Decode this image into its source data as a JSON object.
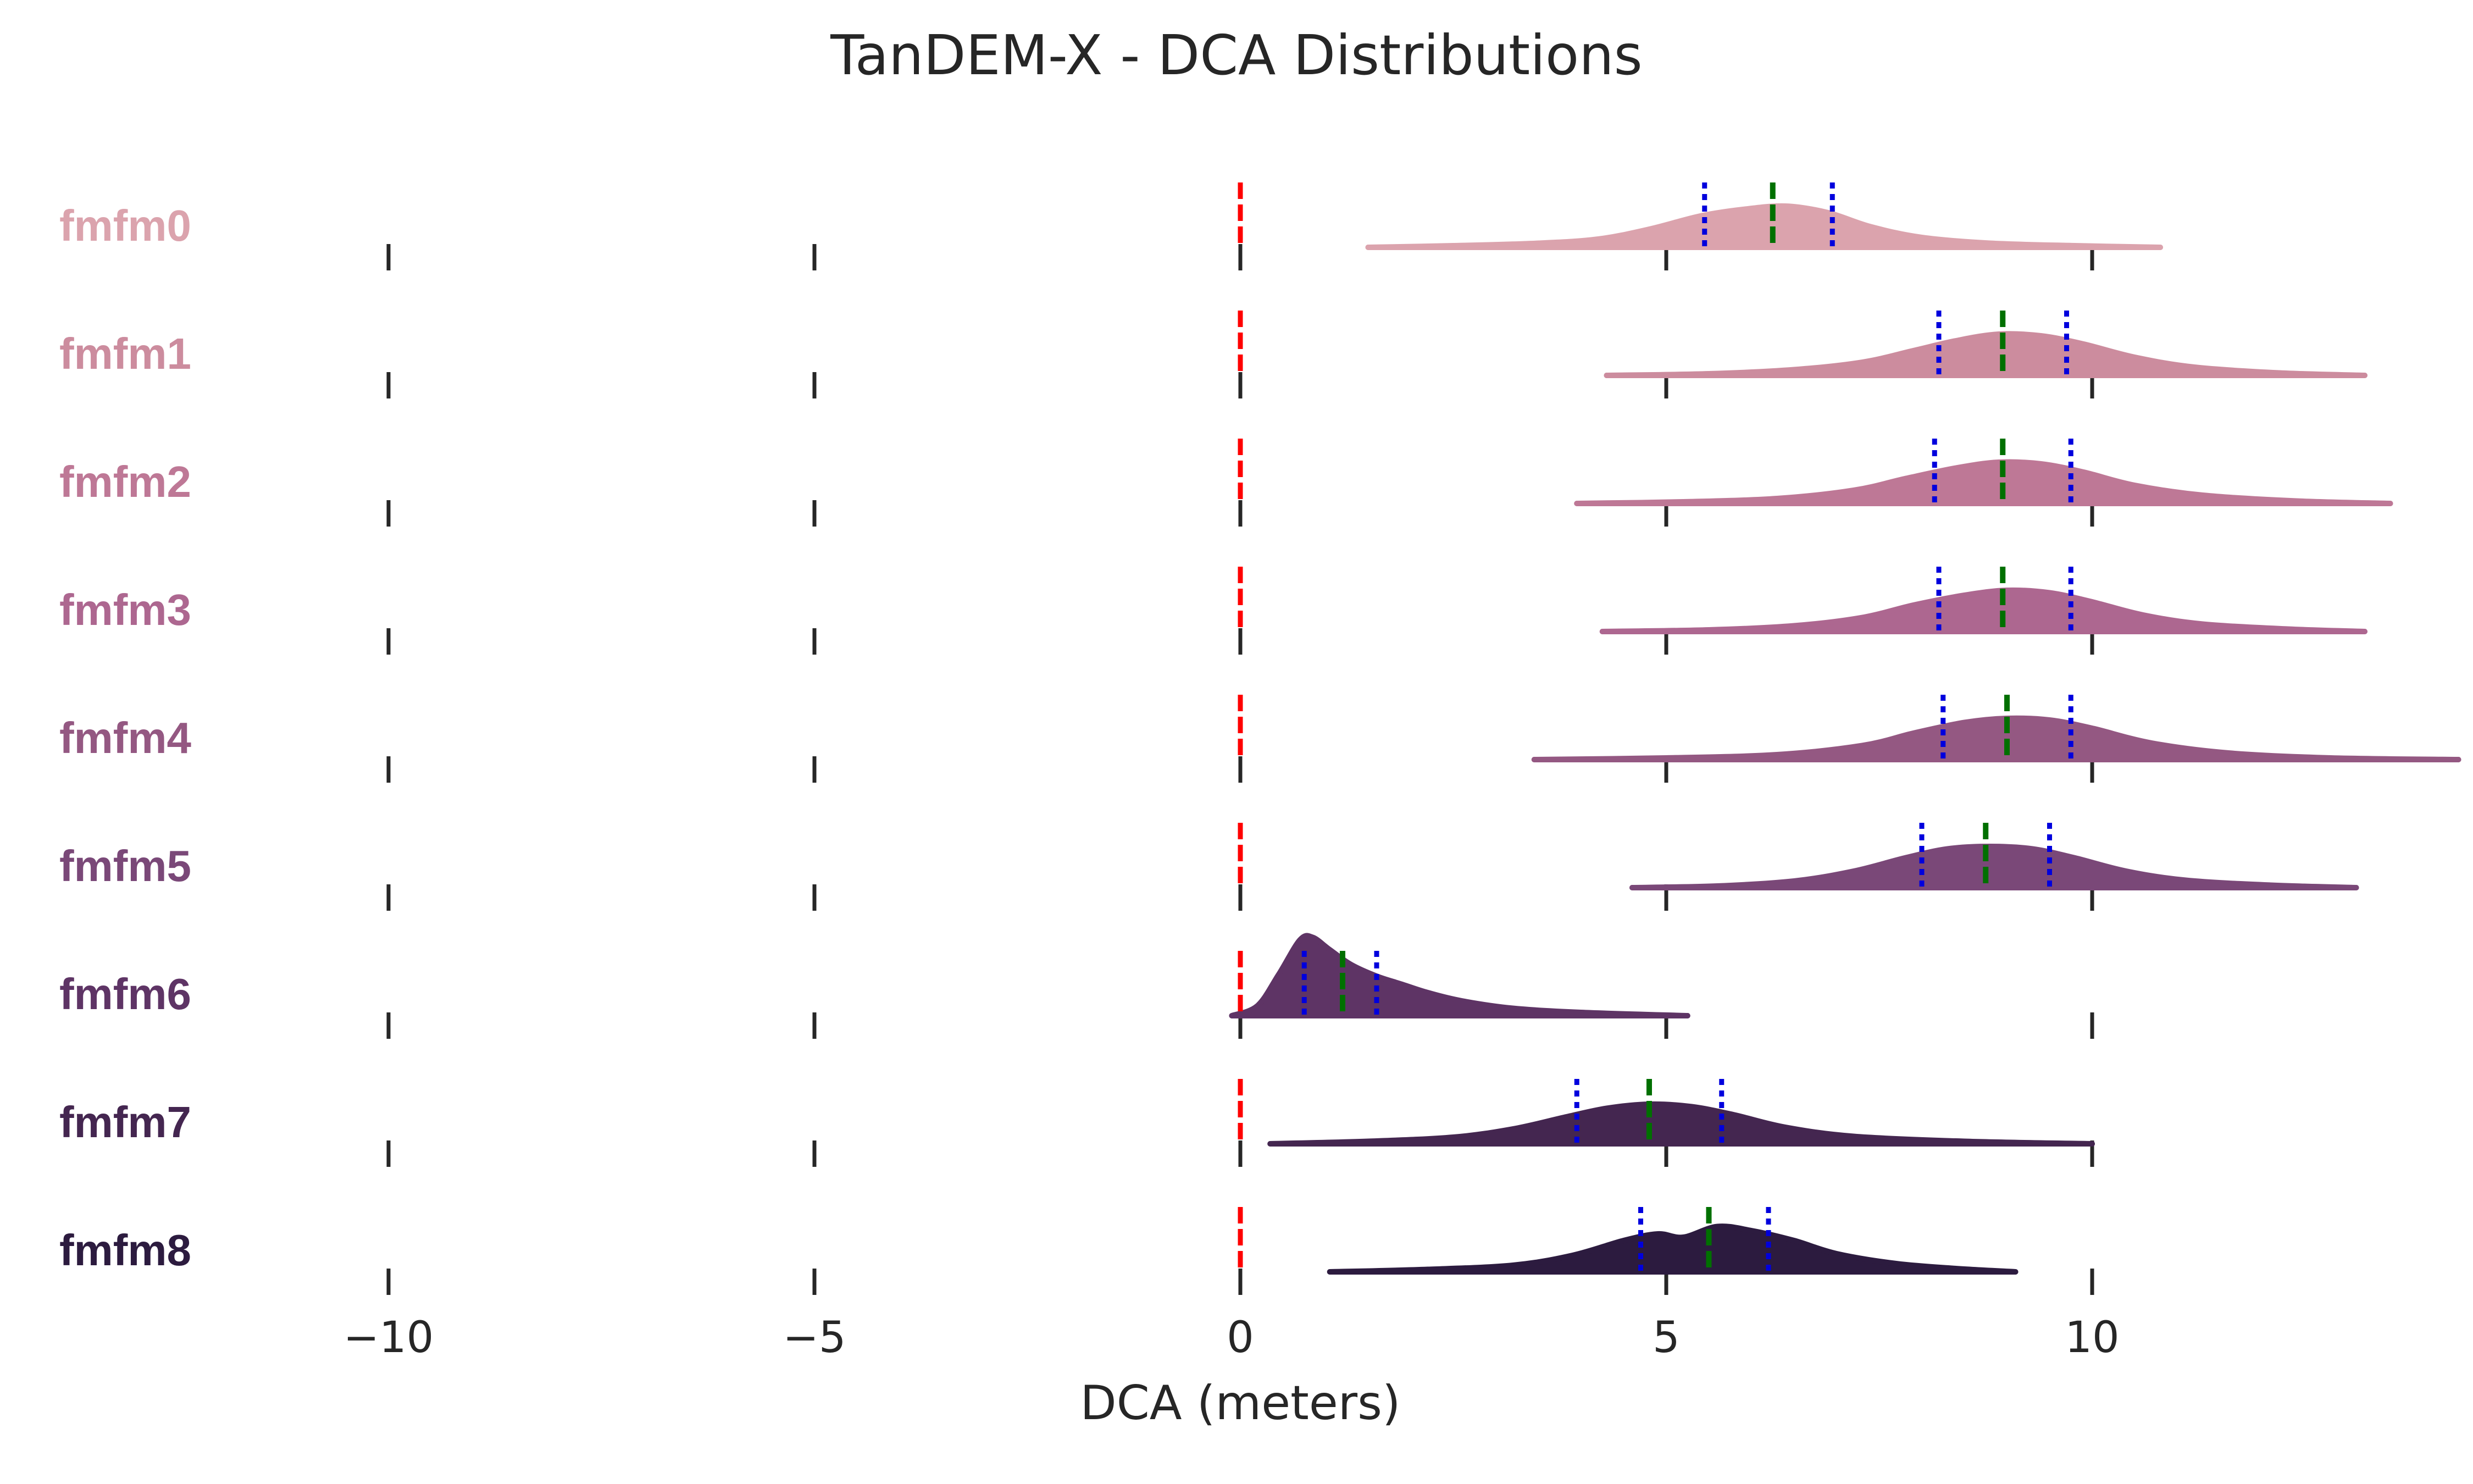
{
  "chart_data": {
    "type": "ridgeline",
    "title": "TanDEM-X - DCA Distributions",
    "xlabel": "DCA (meters)",
    "xlim": [
      -12,
      14.5
    ],
    "xticks": [
      -10,
      -5,
      0,
      5,
      10
    ],
    "xtick_labels": [
      "−10",
      "−5",
      "0",
      "5",
      "10"
    ],
    "reference_line": {
      "x": 0,
      "color": "#ff0000",
      "style": "dashed"
    },
    "median_line_color": "#007000",
    "quartile_line_color": "#0000dd",
    "grid": false,
    "series": [
      {
        "name": "fmfm0",
        "color": "#dba3ad",
        "min": 1.5,
        "max": 10.8,
        "q1": 5.45,
        "median": 6.25,
        "q3": 6.95,
        "density": [
          [
            1.5,
            0
          ],
          [
            2.5,
            0.02
          ],
          [
            3.5,
            0.05
          ],
          [
            4.2,
            0.1
          ],
          [
            4.8,
            0.22
          ],
          [
            5.4,
            0.38
          ],
          [
            5.9,
            0.46
          ],
          [
            6.4,
            0.5
          ],
          [
            6.9,
            0.42
          ],
          [
            7.4,
            0.25
          ],
          [
            8.0,
            0.12
          ],
          [
            8.8,
            0.05
          ],
          [
            9.8,
            0.02
          ],
          [
            10.8,
            0
          ]
        ]
      },
      {
        "name": "fmfm1",
        "color": "#cc8c9e",
        "min": 4.3,
        "max": 13.2,
        "q1": 8.2,
        "median": 8.95,
        "q3": 9.7,
        "density": [
          [
            4.3,
            0
          ],
          [
            5.5,
            0.02
          ],
          [
            6.5,
            0.07
          ],
          [
            7.3,
            0.16
          ],
          [
            7.9,
            0.3
          ],
          [
            8.4,
            0.42
          ],
          [
            8.9,
            0.5
          ],
          [
            9.4,
            0.48
          ],
          [
            9.9,
            0.38
          ],
          [
            10.5,
            0.22
          ],
          [
            11.2,
            0.1
          ],
          [
            12.2,
            0.03
          ],
          [
            13.2,
            0
          ]
        ]
      },
      {
        "name": "fmfm2",
        "color": "#be7896",
        "min": 3.95,
        "max": 13.5,
        "q1": 8.15,
        "median": 8.95,
        "q3": 9.75,
        "density": [
          [
            3.95,
            0
          ],
          [
            5.2,
            0.02
          ],
          [
            6.3,
            0.06
          ],
          [
            7.2,
            0.16
          ],
          [
            7.8,
            0.3
          ],
          [
            8.4,
            0.43
          ],
          [
            8.9,
            0.5
          ],
          [
            9.4,
            0.48
          ],
          [
            9.9,
            0.38
          ],
          [
            10.5,
            0.22
          ],
          [
            11.3,
            0.1
          ],
          [
            12.4,
            0.03
          ],
          [
            13.5,
            0
          ]
        ]
      },
      {
        "name": "fmfm3",
        "color": "#ad6790",
        "min": 4.25,
        "max": 13.2,
        "q1": 8.2,
        "median": 8.95,
        "q3": 9.75,
        "density": [
          [
            4.25,
            0
          ],
          [
            5.5,
            0.02
          ],
          [
            6.5,
            0.07
          ],
          [
            7.3,
            0.17
          ],
          [
            7.9,
            0.32
          ],
          [
            8.5,
            0.44
          ],
          [
            9.0,
            0.5
          ],
          [
            9.5,
            0.47
          ],
          [
            10.0,
            0.36
          ],
          [
            10.6,
            0.2
          ],
          [
            11.3,
            0.09
          ],
          [
            12.3,
            0.03
          ],
          [
            13.2,
            0
          ]
        ]
      },
      {
        "name": "fmfm4",
        "color": "#945882",
        "min": 3.45,
        "max": 14.3,
        "q1": 8.25,
        "median": 9.0,
        "q3": 9.75,
        "density": [
          [
            3.45,
            0
          ],
          [
            5.0,
            0.02
          ],
          [
            6.3,
            0.06
          ],
          [
            7.3,
            0.17
          ],
          [
            7.9,
            0.32
          ],
          [
            8.5,
            0.45
          ],
          [
            9.0,
            0.5
          ],
          [
            9.5,
            0.48
          ],
          [
            10.0,
            0.38
          ],
          [
            10.7,
            0.2
          ],
          [
            11.6,
            0.08
          ],
          [
            12.8,
            0.02
          ],
          [
            14.3,
            0
          ]
        ]
      },
      {
        "name": "fmfm5",
        "color": "#7a4878",
        "min": 4.6,
        "max": 13.1,
        "q1": 8.0,
        "median": 8.75,
        "q3": 9.5,
        "density": [
          [
            4.6,
            0
          ],
          [
            5.6,
            0.02
          ],
          [
            6.5,
            0.08
          ],
          [
            7.2,
            0.2
          ],
          [
            7.8,
            0.36
          ],
          [
            8.3,
            0.47
          ],
          [
            8.8,
            0.5
          ],
          [
            9.3,
            0.47
          ],
          [
            9.8,
            0.36
          ],
          [
            10.4,
            0.2
          ],
          [
            11.1,
            0.09
          ],
          [
            12.1,
            0.03
          ],
          [
            13.1,
            0
          ]
        ]
      },
      {
        "name": "fmfm6",
        "color": "#5e3465",
        "min": -0.1,
        "max": 5.25,
        "q1": 0.75,
        "median": 1.2,
        "q3": 1.6,
        "density": [
          [
            -0.1,
            0
          ],
          [
            0.2,
            0.12
          ],
          [
            0.45,
            0.5
          ],
          [
            0.7,
            0.92
          ],
          [
            0.85,
            0.95
          ],
          [
            1.05,
            0.8
          ],
          [
            1.3,
            0.62
          ],
          [
            1.6,
            0.48
          ],
          [
            1.9,
            0.38
          ],
          [
            2.2,
            0.28
          ],
          [
            2.6,
            0.18
          ],
          [
            3.2,
            0.09
          ],
          [
            4.0,
            0.04
          ],
          [
            5.25,
            0
          ]
        ]
      },
      {
        "name": "fmfm7",
        "color": "#442650",
        "min": 0.35,
        "max": 10.0,
        "q1": 3.95,
        "median": 4.8,
        "q3": 5.65,
        "density": [
          [
            0.35,
            0
          ],
          [
            1.5,
            0.03
          ],
          [
            2.5,
            0.08
          ],
          [
            3.2,
            0.18
          ],
          [
            3.8,
            0.32
          ],
          [
            4.3,
            0.43
          ],
          [
            4.8,
            0.48
          ],
          [
            5.3,
            0.45
          ],
          [
            5.8,
            0.35
          ],
          [
            6.4,
            0.2
          ],
          [
            7.2,
            0.09
          ],
          [
            8.5,
            0.03
          ],
          [
            10.0,
            0
          ]
        ]
      },
      {
        "name": "fmfm8",
        "color": "#2c1b3f",
        "min": 1.05,
        "max": 9.1,
        "q1": 4.7,
        "median": 5.5,
        "q3": 6.2,
        "density": [
          [
            1.05,
            0
          ],
          [
            2.2,
            0.03
          ],
          [
            3.2,
            0.08
          ],
          [
            3.9,
            0.2
          ],
          [
            4.5,
            0.38
          ],
          [
            4.9,
            0.46
          ],
          [
            5.2,
            0.42
          ],
          [
            5.6,
            0.55
          ],
          [
            6.0,
            0.5
          ],
          [
            6.5,
            0.38
          ],
          [
            7.0,
            0.22
          ],
          [
            7.7,
            0.1
          ],
          [
            8.4,
            0.04
          ],
          [
            9.1,
            0
          ]
        ]
      }
    ]
  }
}
